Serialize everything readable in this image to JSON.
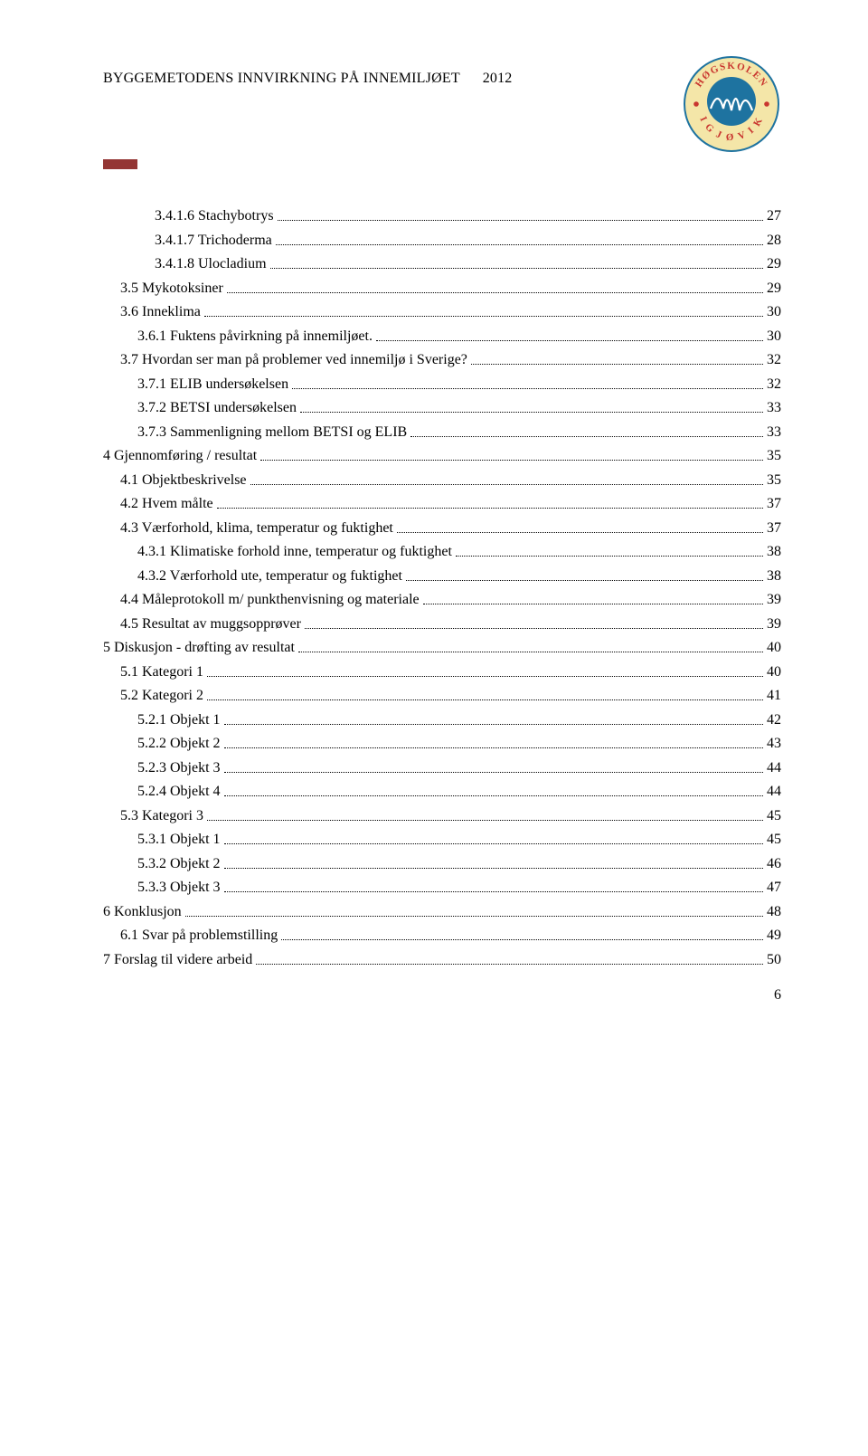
{
  "header": {
    "title": "BYGGEMETODENS INNVIRKNING PÅ INNEMILJØET",
    "year": "2012",
    "logo": {
      "top_text": "HØGSKOLEN",
      "bottom_text": "I GJØVIK",
      "ring_color": "#1e73a0",
      "text_color": "#c9362f",
      "wave_color": "#1e73a0",
      "bg_color": "#f4e6a8"
    }
  },
  "accent_color": "#943634",
  "toc": [
    {
      "level": 3,
      "label": "3.4.1.6 Stachybotrys",
      "page": "27"
    },
    {
      "level": 3,
      "label": "3.4.1.7 Trichoderma",
      "page": "28"
    },
    {
      "level": 3,
      "label": "3.4.1.8 Ulocladium",
      "page": "29"
    },
    {
      "level": 1,
      "label": "3.5 Mykotoksiner",
      "page": "29"
    },
    {
      "level": 1,
      "label": "3.6 Inneklima",
      "page": "30"
    },
    {
      "level": 2,
      "label": "3.6.1 Fuktens påvirkning på innemiljøet.",
      "page": "30"
    },
    {
      "level": 1,
      "label": "3.7 Hvordan ser man på problemer ved innemiljø i Sverige?",
      "page": "32"
    },
    {
      "level": 2,
      "label": "3.7.1 ELIB undersøkelsen",
      "page": "32"
    },
    {
      "level": 2,
      "label": "3.7.2 BETSI undersøkelsen",
      "page": "33"
    },
    {
      "level": 2,
      "label": "3.7.3 Sammenligning mellom BETSI og ELIB",
      "page": "33"
    },
    {
      "level": 0,
      "label": "4 Gjennomføring / resultat",
      "page": "35"
    },
    {
      "level": 1,
      "label": "4.1 Objektbeskrivelse",
      "page": "35"
    },
    {
      "level": 1,
      "label": "4.2 Hvem målte",
      "page": "37"
    },
    {
      "level": 1,
      "label": "4.3 Værforhold, klima, temperatur og fuktighet",
      "page": "37"
    },
    {
      "level": 2,
      "label": "4.3.1 Klimatiske forhold inne, temperatur og fuktighet",
      "page": "38"
    },
    {
      "level": 2,
      "label": "4.3.2 Værforhold ute, temperatur og fuktighet",
      "page": "38"
    },
    {
      "level": 1,
      "label": "4.4 Måleprotokoll m/ punkthenvisning og materiale",
      "page": "39"
    },
    {
      "level": 1,
      "label": "4.5 Resultat av muggsopprøver",
      "page": "39"
    },
    {
      "level": 0,
      "label": "5 Diskusjon - drøfting av resultat",
      "page": "40"
    },
    {
      "level": 1,
      "label": "5.1 Kategori 1",
      "page": "40"
    },
    {
      "level": 1,
      "label": "5.2 Kategori 2",
      "page": "41"
    },
    {
      "level": 2,
      "label": "5.2.1 Objekt 1",
      "page": "42"
    },
    {
      "level": 2,
      "label": "5.2.2 Objekt 2",
      "page": "43"
    },
    {
      "level": 2,
      "label": "5.2.3 Objekt 3",
      "page": "44"
    },
    {
      "level": 2,
      "label": "5.2.4 Objekt 4",
      "page": "44"
    },
    {
      "level": 1,
      "label": "5.3 Kategori 3",
      "page": "45"
    },
    {
      "level": 2,
      "label": "5.3.1 Objekt 1",
      "page": "45"
    },
    {
      "level": 2,
      "label": "5.3.2 Objekt 2",
      "page": "46"
    },
    {
      "level": 2,
      "label": "5.3.3 Objekt 3",
      "page": "47"
    },
    {
      "level": 0,
      "label": "6 Konklusjon",
      "page": "48"
    },
    {
      "level": 1,
      "label": "6.1 Svar på problemstilling",
      "page": "49"
    },
    {
      "level": 0,
      "label": "7 Forslag til videre arbeid",
      "page": "50"
    }
  ],
  "page_number": "6"
}
